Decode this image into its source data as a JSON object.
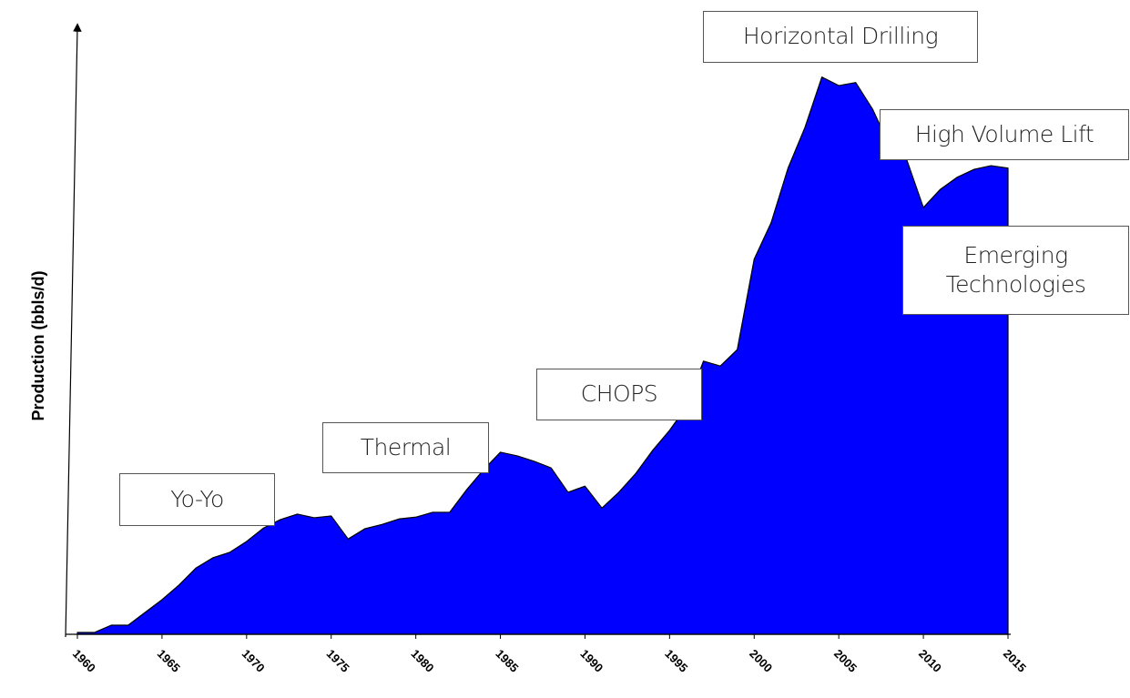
{
  "chart_data": {
    "type": "area",
    "y_label": "Production (bbls/d)",
    "x": [
      1960,
      1961,
      1962,
      1963,
      1964,
      1965,
      1966,
      1967,
      1968,
      1969,
      1970,
      1971,
      1972,
      1973,
      1974,
      1975,
      1976,
      1977,
      1978,
      1979,
      1980,
      1981,
      1982,
      1983,
      1984,
      1985,
      1986,
      1987,
      1988,
      1989,
      1990,
      1991,
      1992,
      1993,
      1994,
      1995,
      1996,
      1997,
      1998,
      1999,
      2000,
      2001,
      2002,
      2003,
      2004,
      2005,
      2006,
      2007,
      2008,
      2009,
      2010,
      2011,
      2012,
      2013,
      2014,
      2015
    ],
    "values": [
      0.3,
      0.3,
      1.5,
      1.5,
      3.6,
      5.7,
      8.1,
      10.9,
      12.6,
      13.5,
      15.3,
      17.5,
      18.9,
      19.8,
      19.2,
      19.5,
      15.7,
      17.4,
      18.1,
      19.0,
      19.3,
      20.1,
      20.1,
      23.8,
      27.1,
      30.0,
      29.4,
      28.5,
      27.4,
      23.4,
      24.4,
      20.8,
      23.4,
      26.5,
      30.3,
      33.6,
      37.5,
      45.0,
      44.2,
      46.9,
      61.8,
      67.8,
      76.8,
      83.5,
      91.8,
      90.4,
      90.9,
      86.5,
      80.5,
      78.3,
      70.3,
      73.3,
      75.3,
      76.6,
      77.2,
      76.8
    ],
    "color": "#0000ff",
    "xlim": [
      1960,
      2015
    ],
    "xticks": [
      1960,
      1965,
      1970,
      1975,
      1980,
      1985,
      1990,
      1995,
      2000,
      2005,
      2010,
      2015
    ],
    "ylim": [
      0,
      100
    ],
    "annotations": [
      "Yo-Yo",
      "Thermal",
      "CHOPS",
      "Horizontal Drilling",
      "High Volume Lift",
      "Emerging Technologies"
    ]
  }
}
